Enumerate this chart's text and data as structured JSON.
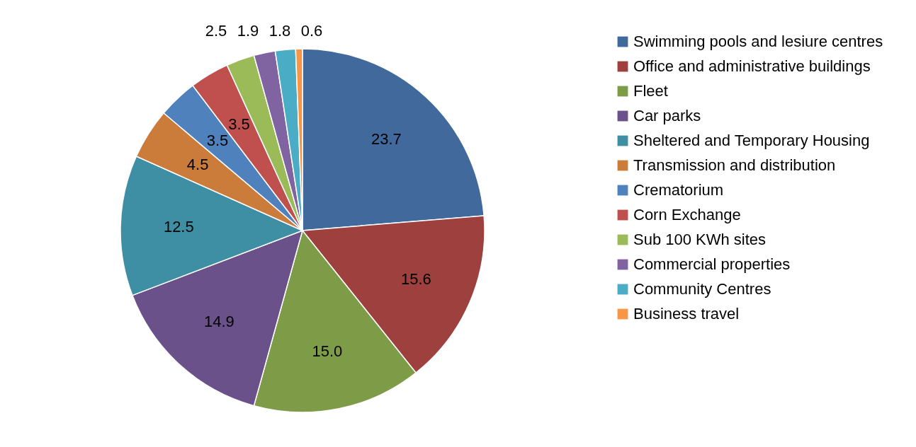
{
  "chart_data": {
    "type": "pie",
    "categories": [
      "Swimming pools and lesiure centres",
      "Office and administrative buildings",
      "Fleet",
      "Car parks",
      "Sheltered and Temporary Housing",
      "Transmission and distribution",
      "Crematorium",
      "Corn Exchange",
      "Sub 100 KWh sites",
      "Commercial properties",
      "Community Centres",
      "Business travel"
    ],
    "values": [
      23.7,
      15.6,
      15.0,
      14.9,
      12.5,
      4.5,
      3.5,
      3.5,
      2.5,
      1.9,
      1.8,
      0.6
    ],
    "value_labels": [
      "23.7",
      "15.6",
      "15.0",
      "14.9",
      "12.5",
      "4.5",
      "3.5",
      "3.5",
      "2.5",
      "1.9",
      "1.8",
      "0.6"
    ],
    "colors": [
      "#41699c",
      "#9e403d",
      "#7e9c48",
      "#6a5189",
      "#3e8ea4",
      "#cb7b3a",
      "#4f81bd",
      "#c0504d",
      "#9bbb59",
      "#8064a2",
      "#4bacc6",
      "#f79646"
    ],
    "legend": "right"
  }
}
